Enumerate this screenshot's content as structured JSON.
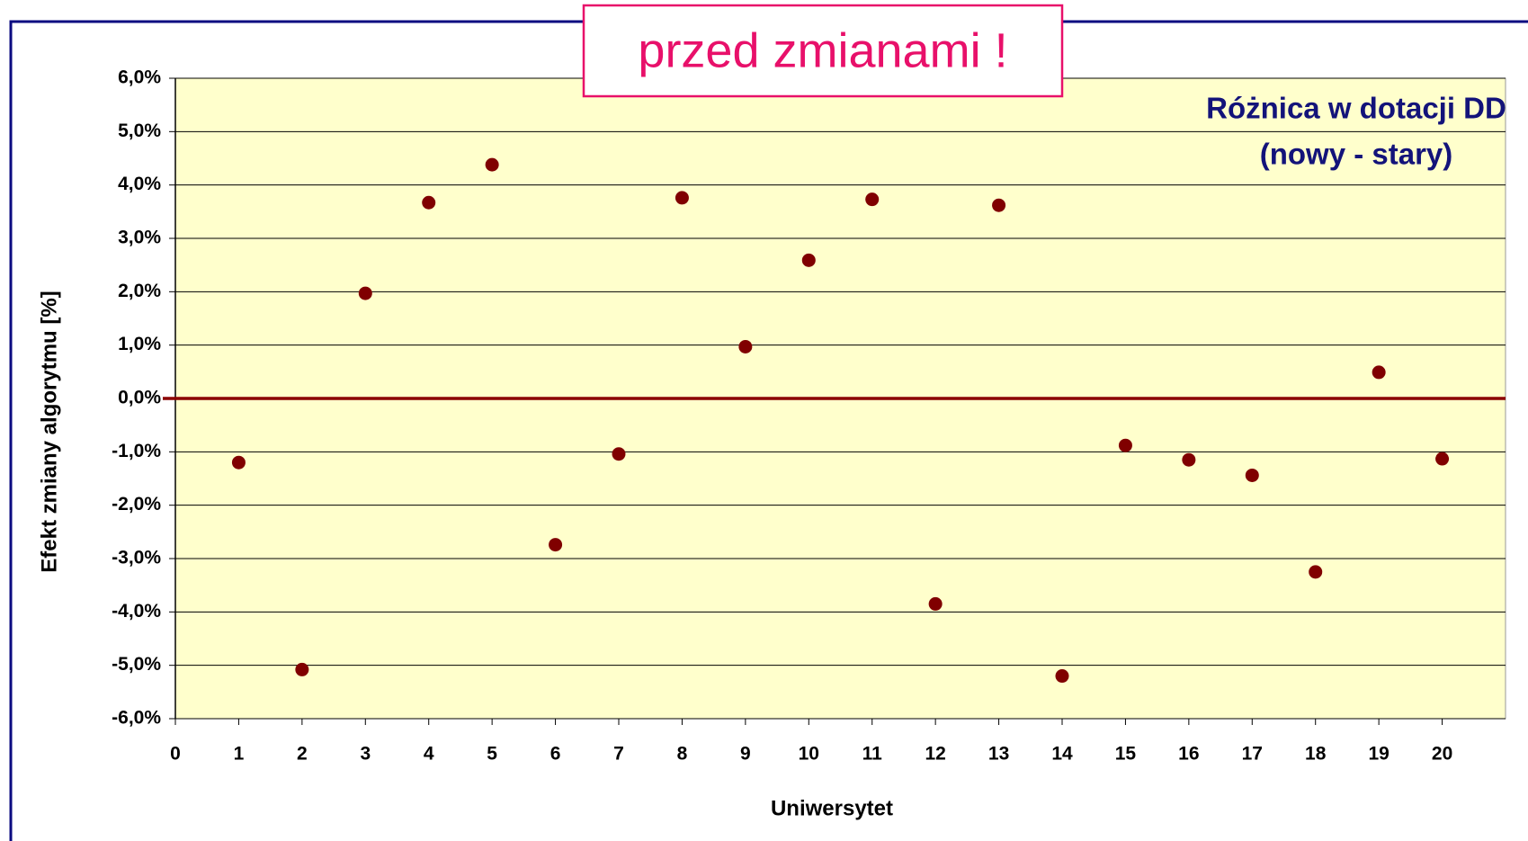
{
  "chart_data": {
    "type": "scatter",
    "banner": "przed zmianami !",
    "annotations": [
      "Różnica w dotacji DD",
      "(nowy - stary)"
    ],
    "x_label": "Uniwersytet",
    "y_label": "Efekt zmiany algorytmu [%]",
    "x": [
      1,
      2,
      3,
      4,
      5,
      6,
      7,
      8,
      9,
      10,
      11,
      12,
      13,
      14,
      15,
      16,
      17,
      18,
      19,
      20
    ],
    "values": [
      -1.2,
      -5.08,
      1.97,
      3.67,
      4.38,
      -2.74,
      -1.04,
      3.76,
      0.97,
      2.59,
      3.73,
      -3.85,
      3.62,
      -5.2,
      -0.88,
      -1.15,
      -1.44,
      -3.25,
      0.49,
      -1.13
    ],
    "color": "#800000",
    "zero_line_color": "#8b0000",
    "xlim": [
      0,
      21
    ],
    "xticks": [
      0,
      1,
      2,
      3,
      4,
      5,
      6,
      7,
      8,
      9,
      10,
      11,
      12,
      13,
      14,
      15,
      16,
      17,
      18,
      19,
      20
    ],
    "ylim": [
      -6,
      6
    ],
    "yticks": [
      {
        "value": -6,
        "label": "-6,0%"
      },
      {
        "value": -5,
        "label": "-5,0%"
      },
      {
        "value": -4,
        "label": "-4,0%"
      },
      {
        "value": -3,
        "label": "-3,0%"
      },
      {
        "value": -2,
        "label": "-2,0%"
      },
      {
        "value": -1,
        "label": "-1,0%"
      },
      {
        "value": 0,
        "label": "0,0%"
      },
      {
        "value": 1,
        "label": "1,0%"
      },
      {
        "value": 2,
        "label": "2,0%"
      },
      {
        "value": 3,
        "label": "3,0%"
      },
      {
        "value": 4,
        "label": "4,0%"
      },
      {
        "value": 5,
        "label": "5,0%"
      },
      {
        "value": 6,
        "label": "6,0%"
      }
    ],
    "grid": true
  }
}
